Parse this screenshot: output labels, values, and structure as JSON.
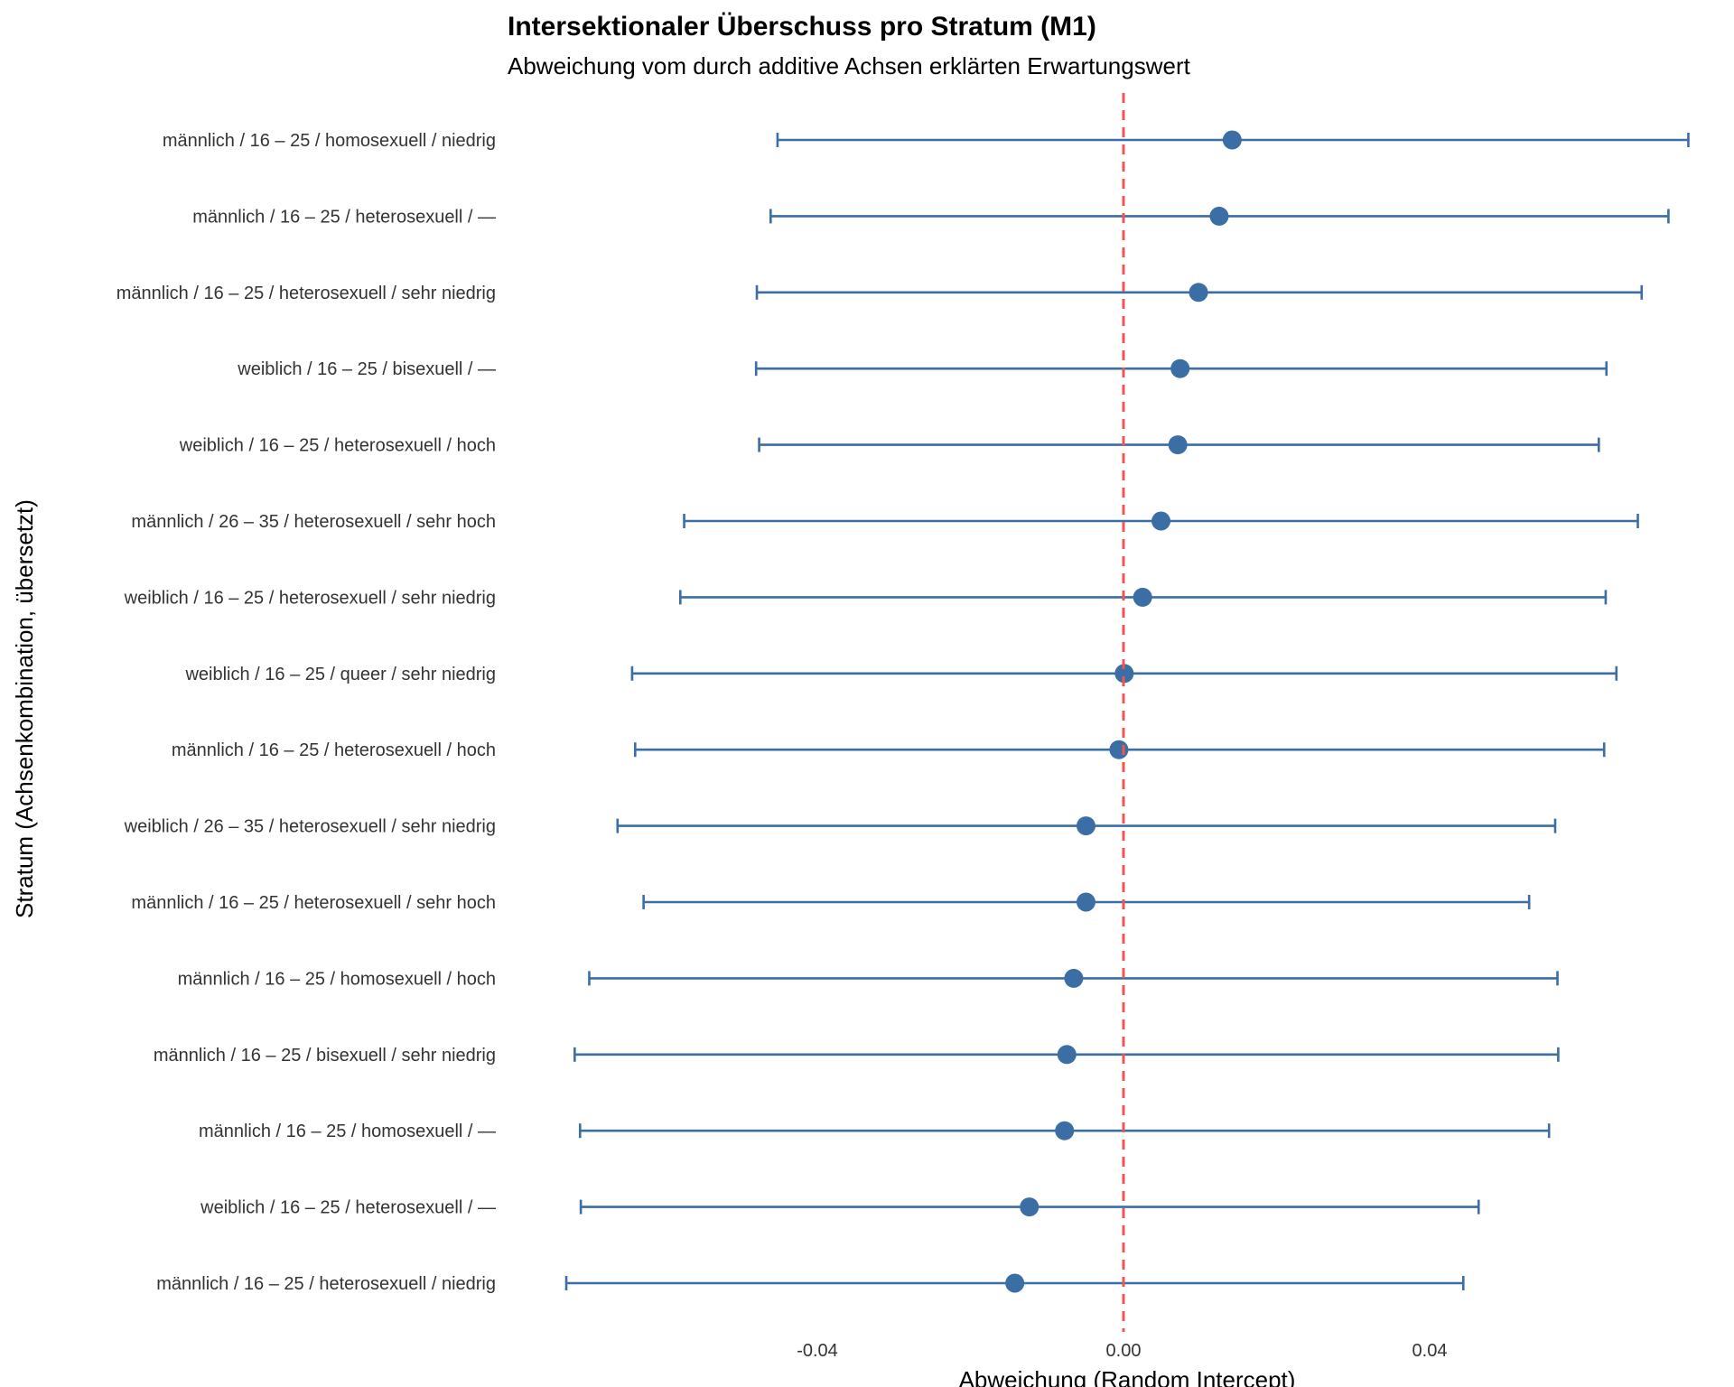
{
  "chart_data": {
    "type": "scatter",
    "title": "Intersektionaler Überschuss pro Stratum (M1)",
    "subtitle": "Abweichung vom durch additive Achsen erklärten Erwartungswert",
    "xlabel": "Abweichung (Random Intercept)",
    "ylabel": "Stratum (Achsenkombination, übersetzt)",
    "xlim": [
      -0.0725,
      0.0735
    ],
    "xticks": [
      {
        "value": -0.04,
        "label": "-0.04"
      },
      {
        "value": 0.0,
        "label": "0.00"
      },
      {
        "value": 0.04,
        "label": "0.04"
      }
    ],
    "reference_line": {
      "x": 0.0,
      "style": "dashed",
      "color": "#ee5555"
    },
    "grid": false,
    "point_color": "#3a6ea5",
    "rows": [
      {
        "label": "männlich / 16 – 25 / homosexuell / niedrig",
        "estimate": 0.0142,
        "lower": -0.0452,
        "upper": 0.0738
      },
      {
        "label": "männlich / 16 – 25 / heterosexuell / —",
        "estimate": 0.0125,
        "lower": -0.0461,
        "upper": 0.0712
      },
      {
        "label": "männlich / 16 – 25 / heterosexuell / sehr niedrig",
        "estimate": 0.0098,
        "lower": -0.0479,
        "upper": 0.0677
      },
      {
        "label": "weiblich / 16 – 25 / bisexuell / —",
        "estimate": 0.0074,
        "lower": -0.048,
        "upper": 0.0631
      },
      {
        "label": "weiblich / 16 – 25 / heterosexuell / hoch",
        "estimate": 0.0071,
        "lower": -0.0476,
        "upper": 0.0621
      },
      {
        "label": "männlich / 26 – 35 / heterosexuell / sehr hoch",
        "estimate": 0.0049,
        "lower": -0.0574,
        "upper": 0.0672
      },
      {
        "label": "weiblich / 16 – 25 / heterosexuell / sehr niedrig",
        "estimate": 0.0025,
        "lower": -0.0579,
        "upper": 0.063
      },
      {
        "label": "weiblich / 16 – 25 / queer / sehr niedrig",
        "estimate": 0.0001,
        "lower": -0.0642,
        "upper": 0.0644
      },
      {
        "label": "männlich / 16 – 25 / heterosexuell / hoch",
        "estimate": -0.0006,
        "lower": -0.0638,
        "upper": 0.0628
      },
      {
        "label": "weiblich / 26 – 35 / heterosexuell / sehr niedrig",
        "estimate": -0.0049,
        "lower": -0.0661,
        "upper": 0.0564
      },
      {
        "label": "männlich / 16 – 25 / heterosexuell / sehr hoch",
        "estimate": -0.0049,
        "lower": -0.0627,
        "upper": 0.053
      },
      {
        "label": "männlich / 16 – 25 / homosexuell / hoch",
        "estimate": -0.0065,
        "lower": -0.0698,
        "upper": 0.0567
      },
      {
        "label": "männlich / 16 – 25 / bisexuell / sehr niedrig",
        "estimate": -0.0074,
        "lower": -0.0717,
        "upper": 0.0568
      },
      {
        "label": "männlich / 16 – 25 / homosexuell / —",
        "estimate": -0.0077,
        "lower": -0.071,
        "upper": 0.0556
      },
      {
        "label": "weiblich / 16 – 25 / heterosexuell / —",
        "estimate": -0.0123,
        "lower": -0.0709,
        "upper": 0.0464
      },
      {
        "label": "männlich / 16 – 25 / heterosexuell / niedrig",
        "estimate": -0.0142,
        "lower": -0.0728,
        "upper": 0.0444
      }
    ]
  }
}
